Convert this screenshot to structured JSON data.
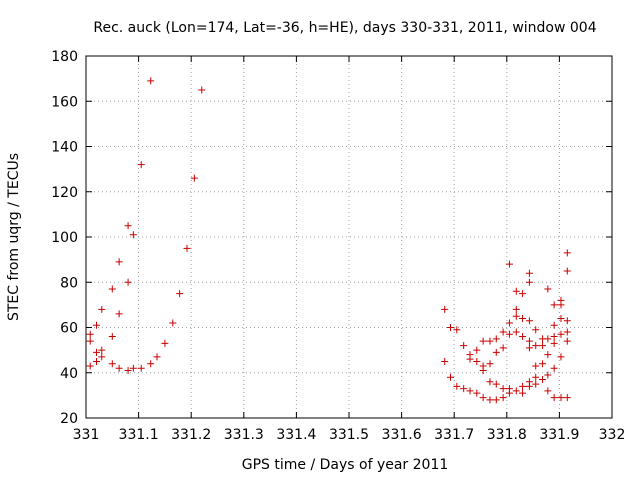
{
  "chart_data": {
    "type": "scatter",
    "title": "Rec. auck (Lon=174, Lat=-36, h=HE), days 330-331, 2011, window 004",
    "xlabel": "GPS time / Days of year 2011",
    "ylabel": "STEC from uqrg / TECUs",
    "xlim": [
      331,
      332
    ],
    "ylim": [
      20,
      180
    ],
    "x_ticks": [
      331,
      331.1,
      331.2,
      331.3,
      331.4,
      331.5,
      331.6,
      331.7,
      331.8,
      331.9,
      332
    ],
    "x_tick_labels": [
      "331",
      "331.1",
      "331.2",
      "331.3",
      "331.4",
      "331.5",
      "331.6",
      "331.7",
      "331.8",
      "331.9",
      "332"
    ],
    "y_ticks": [
      20,
      40,
      60,
      80,
      100,
      120,
      140,
      160,
      180
    ],
    "y_tick_labels": [
      "20",
      "40",
      "60",
      "80",
      "100",
      "120",
      "140",
      "160",
      "180"
    ],
    "grid": true,
    "marker": "+",
    "color": "#cc0000",
    "series": [
      {
        "name": "STEC",
        "points": [
          [
            331.008,
            57
          ],
          [
            331.008,
            54
          ],
          [
            331.008,
            43
          ],
          [
            331.02,
            61
          ],
          [
            331.02,
            49
          ],
          [
            331.02,
            45
          ],
          [
            331.03,
            68
          ],
          [
            331.03,
            50
          ],
          [
            331.03,
            47
          ],
          [
            331.05,
            77
          ],
          [
            331.05,
            56
          ],
          [
            331.05,
            44
          ],
          [
            331.063,
            89
          ],
          [
            331.063,
            66
          ],
          [
            331.063,
            42
          ],
          [
            331.08,
            105
          ],
          [
            331.08,
            80
          ],
          [
            331.08,
            41
          ],
          [
            331.09,
            101
          ],
          [
            331.09,
            42
          ],
          [
            331.105,
            132
          ],
          [
            331.105,
            42
          ],
          [
            331.123,
            169
          ],
          [
            331.123,
            44
          ],
          [
            331.135,
            47
          ],
          [
            331.15,
            53
          ],
          [
            331.165,
            62
          ],
          [
            331.178,
            75
          ],
          [
            331.192,
            95
          ],
          [
            331.206,
            126
          ],
          [
            331.22,
            165
          ],
          [
            331.682,
            68
          ],
          [
            331.682,
            45
          ],
          [
            331.693,
            60
          ],
          [
            331.693,
            38
          ],
          [
            331.705,
            59
          ],
          [
            331.705,
            34
          ],
          [
            331.718,
            52
          ],
          [
            331.718,
            33
          ],
          [
            331.73,
            48
          ],
          [
            331.73,
            46
          ],
          [
            331.73,
            32
          ],
          [
            331.743,
            50
          ],
          [
            331.743,
            45
          ],
          [
            331.743,
            31
          ],
          [
            331.755,
            54
          ],
          [
            331.755,
            43
          ],
          [
            331.755,
            41
          ],
          [
            331.755,
            29
          ],
          [
            331.768,
            54
          ],
          [
            331.768,
            44
          ],
          [
            331.768,
            36
          ],
          [
            331.768,
            28
          ],
          [
            331.78,
            55
          ],
          [
            331.78,
            49
          ],
          [
            331.78,
            35
          ],
          [
            331.78,
            28
          ],
          [
            331.793,
            58
          ],
          [
            331.793,
            51
          ],
          [
            331.793,
            33
          ],
          [
            331.793,
            29
          ],
          [
            331.805,
            88
          ],
          [
            331.805,
            62
          ],
          [
            331.805,
            57
          ],
          [
            331.805,
            33
          ],
          [
            331.805,
            31
          ],
          [
            331.818,
            76
          ],
          [
            331.818,
            68
          ],
          [
            331.818,
            65
          ],
          [
            331.818,
            58
          ],
          [
            331.818,
            32
          ],
          [
            331.83,
            75
          ],
          [
            331.83,
            64
          ],
          [
            331.83,
            56
          ],
          [
            331.83,
            34
          ],
          [
            331.83,
            31
          ],
          [
            331.843,
            84
          ],
          [
            331.843,
            80
          ],
          [
            331.843,
            63
          ],
          [
            331.843,
            54
          ],
          [
            331.843,
            51
          ],
          [
            331.843,
            36
          ],
          [
            331.843,
            34
          ],
          [
            331.855,
            59
          ],
          [
            331.855,
            52
          ],
          [
            331.855,
            43
          ],
          [
            331.855,
            38
          ],
          [
            331.855,
            35
          ],
          [
            331.868,
            55
          ],
          [
            331.868,
            52
          ],
          [
            331.868,
            44
          ],
          [
            331.868,
            37
          ],
          [
            331.878,
            77
          ],
          [
            331.878,
            55
          ],
          [
            331.878,
            48
          ],
          [
            331.878,
            39
          ],
          [
            331.878,
            32
          ],
          [
            331.89,
            70
          ],
          [
            331.89,
            61
          ],
          [
            331.89,
            56
          ],
          [
            331.89,
            53
          ],
          [
            331.89,
            42
          ],
          [
            331.89,
            29
          ],
          [
            331.903,
            72
          ],
          [
            331.903,
            70
          ],
          [
            331.903,
            64
          ],
          [
            331.903,
            57
          ],
          [
            331.903,
            47
          ],
          [
            331.903,
            29
          ],
          [
            331.915,
            93
          ],
          [
            331.915,
            85
          ],
          [
            331.915,
            63
          ],
          [
            331.915,
            58
          ],
          [
            331.915,
            54
          ],
          [
            331.915,
            29
          ]
        ]
      }
    ]
  }
}
